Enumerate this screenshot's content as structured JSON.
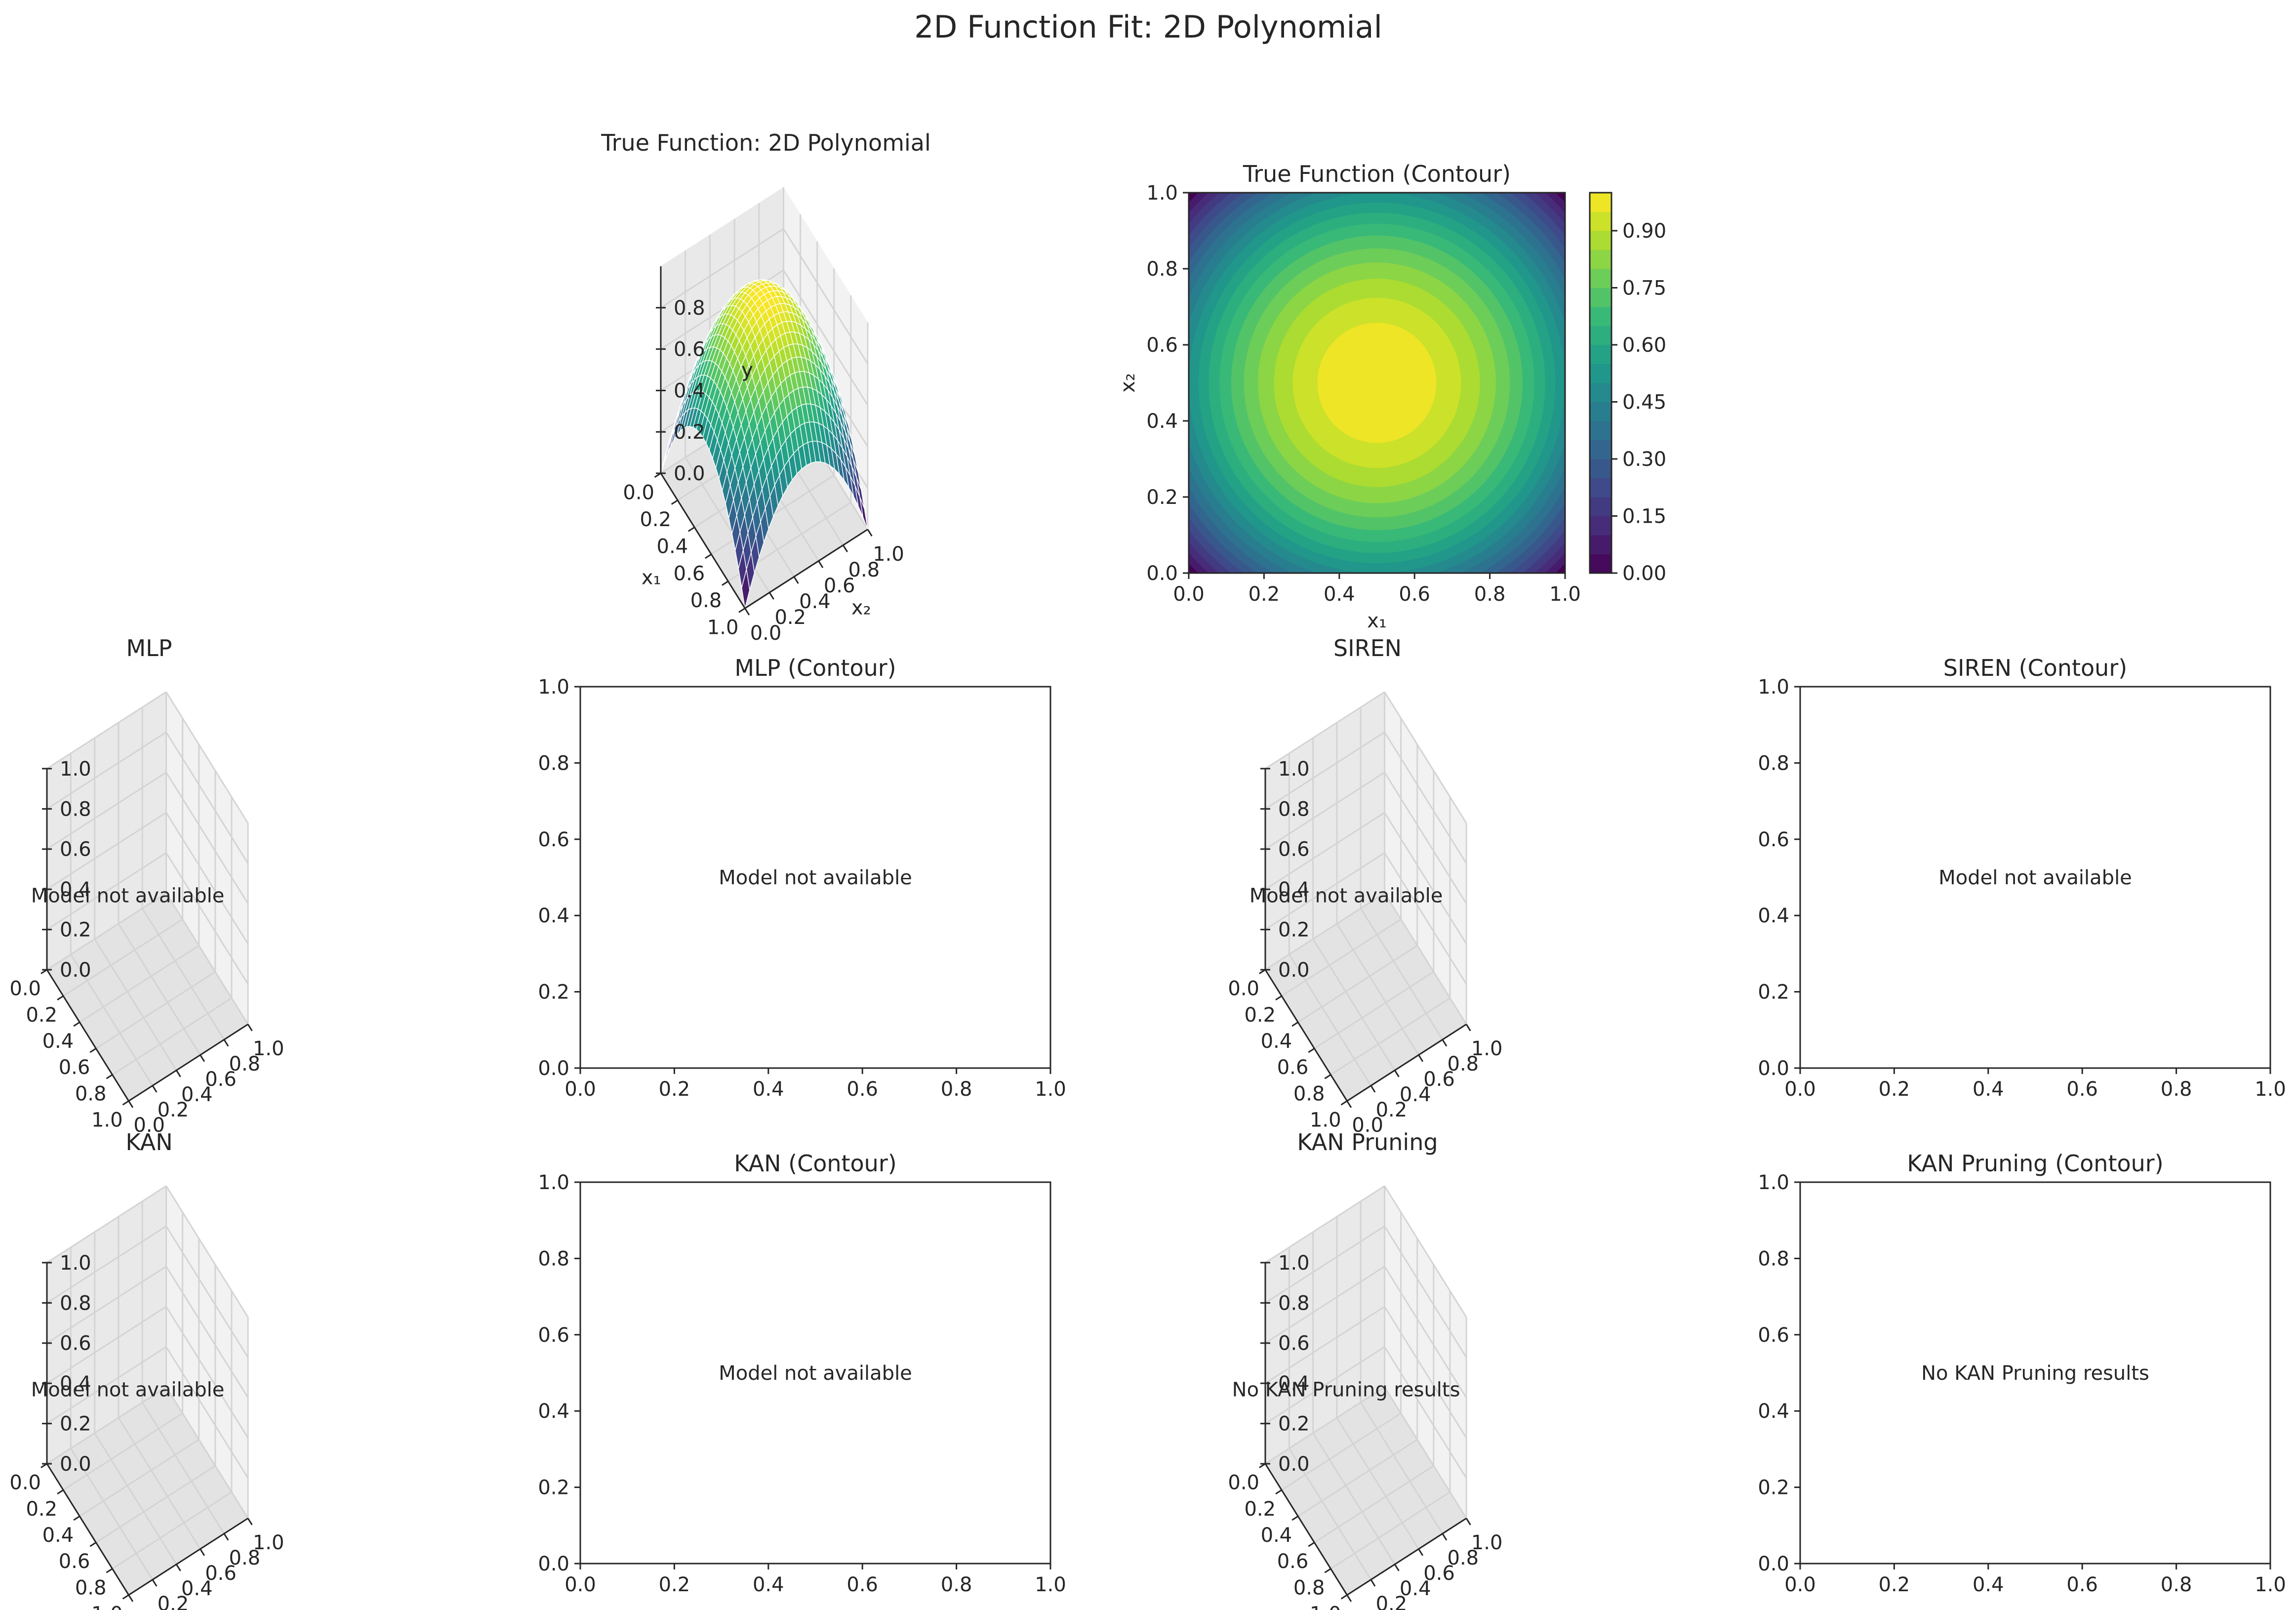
{
  "figure": {
    "title": "2D Function Fit: 2D Polynomial",
    "colors": {
      "cmap": [
        "#440154",
        "#482878",
        "#3e4989",
        "#31688e",
        "#26828e",
        "#1f9e89",
        "#35b779",
        "#6ece58",
        "#b5de2b",
        "#fde725"
      ]
    }
  },
  "panels": [
    {
      "id": "true3d",
      "kind": "3d",
      "title": "True Function: 2D Polynomial",
      "xlabel": "x₁",
      "ylabel": "x₂",
      "zlabel": "y",
      "xticks": [
        "0.0",
        "0.2",
        "0.4",
        "0.6",
        "0.8",
        "1.0"
      ],
      "yticks": [
        "0.0",
        "0.2",
        "0.4",
        "0.6",
        "0.8",
        "1.0"
      ],
      "zticks": [
        "0.0",
        "0.2",
        "0.4",
        "0.6",
        "0.8"
      ],
      "zlim": [
        0,
        1
      ],
      "surface": true,
      "message": ""
    },
    {
      "id": "truecontour",
      "kind": "contour",
      "title": "True Function (Contour)",
      "xlabel": "x₁",
      "ylabel": "x₂",
      "xticks": [
        "0.0",
        "0.2",
        "0.4",
        "0.6",
        "0.8",
        "1.0"
      ],
      "yticks": [
        "0.0",
        "0.2",
        "0.4",
        "0.6",
        "0.8",
        "1.0"
      ],
      "xlim": [
        0,
        1
      ],
      "ylim": [
        0,
        1
      ],
      "filled": true,
      "message": "",
      "colorbar": {
        "ticks": [
          "0.00",
          "0.15",
          "0.30",
          "0.45",
          "0.60",
          "0.75",
          "0.90"
        ],
        "min": 0.0,
        "max": 1.0
      }
    },
    {
      "id": "mlp3d",
      "kind": "3d",
      "title": "MLP",
      "xlabel": "",
      "ylabel": "",
      "zlabel": "",
      "xticks": [
        "0.0",
        "0.2",
        "0.4",
        "0.6",
        "0.8",
        "1.0"
      ],
      "yticks": [
        "0.0",
        "0.2",
        "0.4",
        "0.6",
        "0.8",
        "1.0"
      ],
      "zticks": [
        "0.0",
        "0.2",
        "0.4",
        "0.6",
        "0.8",
        "1.0"
      ],
      "zlim": [
        0,
        1
      ],
      "surface": false,
      "message": "Model not available"
    },
    {
      "id": "mlpcontour",
      "kind": "contour",
      "title": "MLP (Contour)",
      "xlabel": "",
      "ylabel": "",
      "xticks": [
        "0.0",
        "0.2",
        "0.4",
        "0.6",
        "0.8",
        "1.0"
      ],
      "yticks": [
        "0.0",
        "0.2",
        "0.4",
        "0.6",
        "0.8",
        "1.0"
      ],
      "xlim": [
        0,
        1
      ],
      "ylim": [
        0,
        1
      ],
      "filled": false,
      "message": "Model not available"
    },
    {
      "id": "siren3d",
      "kind": "3d",
      "title": "SIREN",
      "xlabel": "",
      "ylabel": "",
      "zlabel": "",
      "xticks": [
        "0.0",
        "0.2",
        "0.4",
        "0.6",
        "0.8",
        "1.0"
      ],
      "yticks": [
        "0.0",
        "0.2",
        "0.4",
        "0.6",
        "0.8",
        "1.0"
      ],
      "zticks": [
        "0.0",
        "0.2",
        "0.4",
        "0.6",
        "0.8",
        "1.0"
      ],
      "zlim": [
        0,
        1
      ],
      "surface": false,
      "message": "Model not available"
    },
    {
      "id": "sirencontour",
      "kind": "contour",
      "title": "SIREN (Contour)",
      "xlabel": "",
      "ylabel": "",
      "xticks": [
        "0.0",
        "0.2",
        "0.4",
        "0.6",
        "0.8",
        "1.0"
      ],
      "yticks": [
        "0.0",
        "0.2",
        "0.4",
        "0.6",
        "0.8",
        "1.0"
      ],
      "xlim": [
        0,
        1
      ],
      "ylim": [
        0,
        1
      ],
      "filled": false,
      "message": "Model not available"
    },
    {
      "id": "kan3d",
      "kind": "3d",
      "title": "KAN",
      "xlabel": "",
      "ylabel": "",
      "zlabel": "",
      "xticks": [
        "0.0",
        "0.2",
        "0.4",
        "0.6",
        "0.8",
        "1.0"
      ],
      "yticks": [
        "0.0",
        "0.2",
        "0.4",
        "0.6",
        "0.8",
        "1.0"
      ],
      "zticks": [
        "0.0",
        "0.2",
        "0.4",
        "0.6",
        "0.8",
        "1.0"
      ],
      "zlim": [
        0,
        1
      ],
      "surface": false,
      "message": "Model not available"
    },
    {
      "id": "kancontour",
      "kind": "contour",
      "title": "KAN (Contour)",
      "xlabel": "",
      "ylabel": "",
      "xticks": [
        "0.0",
        "0.2",
        "0.4",
        "0.6",
        "0.8",
        "1.0"
      ],
      "yticks": [
        "0.0",
        "0.2",
        "0.4",
        "0.6",
        "0.8",
        "1.0"
      ],
      "xlim": [
        0,
        1
      ],
      "ylim": [
        0,
        1
      ],
      "filled": false,
      "message": "Model not available"
    },
    {
      "id": "kanprune3d",
      "kind": "3d",
      "title": "KAN Pruning",
      "xlabel": "",
      "ylabel": "",
      "zlabel": "",
      "xticks": [
        "0.0",
        "0.2",
        "0.4",
        "0.6",
        "0.8",
        "1.0"
      ],
      "yticks": [
        "0.0",
        "0.2",
        "0.4",
        "0.6",
        "0.8",
        "1.0"
      ],
      "zticks": [
        "0.0",
        "0.2",
        "0.4",
        "0.6",
        "0.8",
        "1.0"
      ],
      "zlim": [
        0,
        1
      ],
      "surface": false,
      "message": "No KAN Pruning results"
    },
    {
      "id": "kanprunecontour",
      "kind": "contour",
      "title": "KAN Pruning (Contour)",
      "xlabel": "",
      "ylabel": "",
      "xticks": [
        "0.0",
        "0.2",
        "0.4",
        "0.6",
        "0.8",
        "1.0"
      ],
      "yticks": [
        "0.0",
        "0.2",
        "0.4",
        "0.6",
        "0.8",
        "1.0"
      ],
      "xlim": [
        0,
        1
      ],
      "ylim": [
        0,
        1
      ],
      "filled": false,
      "message": "No KAN Pruning results"
    }
  ],
  "chart_data": [
    {
      "type": "surface",
      "title": "True Function: 2D Polynomial",
      "xlabel": "x₁",
      "ylabel": "x₂",
      "zlabel": "y",
      "xlim": [
        0,
        1
      ],
      "ylim": [
        0,
        1
      ],
      "zlim": [
        0,
        1
      ],
      "peak": {
        "x": 0.5,
        "y": 0.5,
        "z": 1.0
      },
      "corner_value": 0.0
    },
    {
      "type": "contour",
      "title": "True Function (Contour)",
      "xlabel": "x₁",
      "ylabel": "x₂",
      "xlim": [
        0,
        1
      ],
      "ylim": [
        0,
        1
      ],
      "levels_min": 0.0,
      "levels_max": 1.0,
      "level_step": 0.05,
      "colorbar_ticks": [
        0.0,
        0.15,
        0.3,
        0.45,
        0.6,
        0.75,
        0.9
      ],
      "center": [
        0.5,
        0.5
      ]
    }
  ]
}
